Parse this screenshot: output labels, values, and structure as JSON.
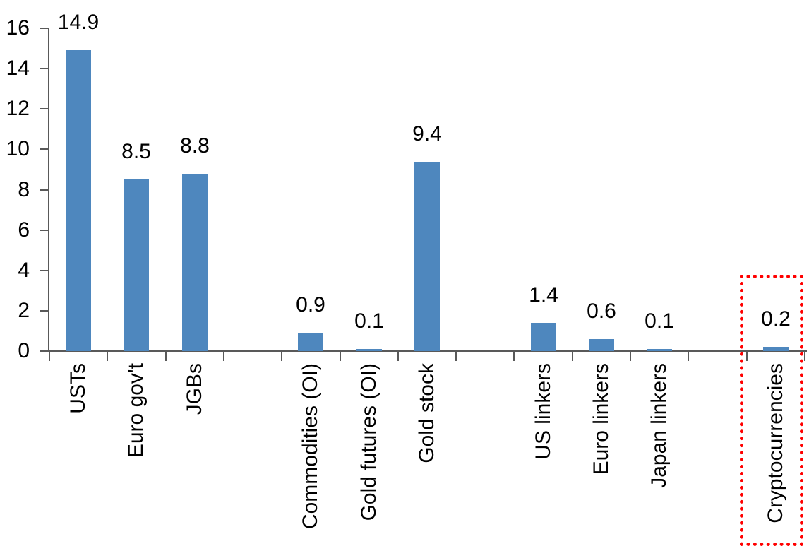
{
  "chart_data": {
    "type": "bar",
    "title": "",
    "xlabel": "",
    "ylabel": "",
    "categories": [
      "USTs",
      "Euro gov't",
      "JGBs",
      "",
      "Commodities (OI)",
      "Gold futures (OI)",
      "Gold stock",
      "",
      "US linkers",
      "Euro linkers",
      "Japan linkers",
      "",
      "Cryptocurrencies"
    ],
    "values": [
      14.9,
      8.5,
      8.8,
      null,
      0.9,
      0.1,
      9.4,
      null,
      1.4,
      0.6,
      0.1,
      null,
      0.2
    ],
    "data_labels": [
      "14.9",
      "8.5",
      "8.8",
      null,
      "0.9",
      "0.1",
      "9.4",
      null,
      "1.4",
      "0.6",
      "0.1",
      null,
      "0.2"
    ],
    "ylim": [
      0,
      16
    ],
    "yticks": [
      0,
      2,
      4,
      6,
      8,
      10,
      12,
      14,
      16
    ],
    "grid": false,
    "legend": false,
    "bar_color": "#4E87BE",
    "axis_color": "#595959",
    "text_color": "#000000",
    "highlight": {
      "category": "Cryptocurrencies",
      "box_color": "#FF0000",
      "box_style": "dotted"
    }
  }
}
